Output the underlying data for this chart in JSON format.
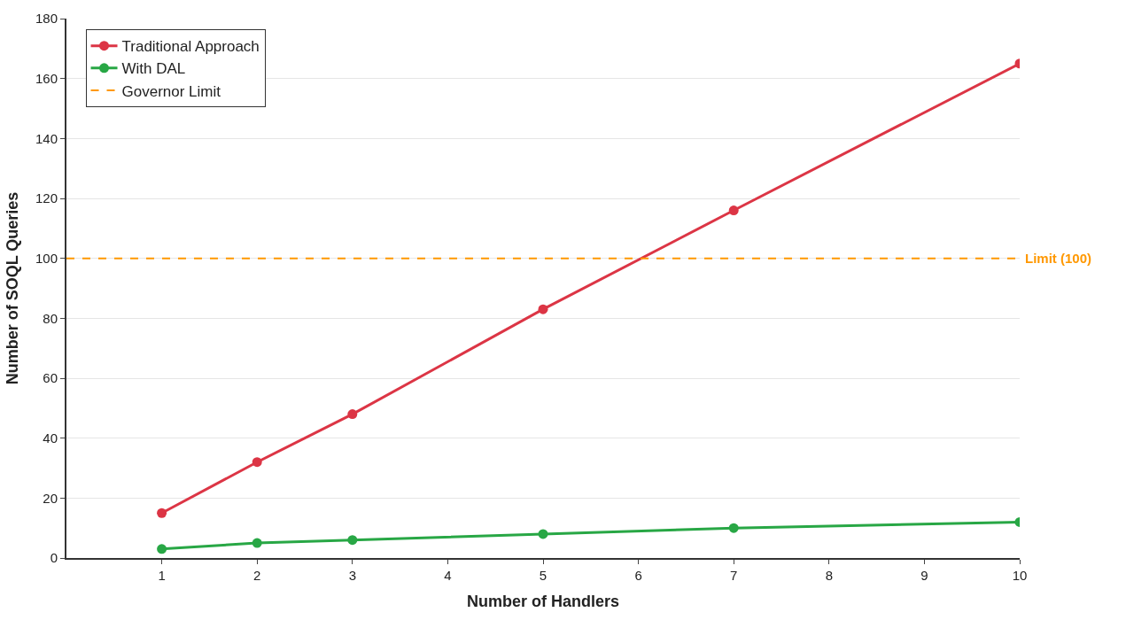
{
  "chart_data": {
    "type": "line",
    "xlabel": "Number of Handlers",
    "ylabel": "Number of SOQL Queries",
    "x": [
      1,
      2,
      3,
      5,
      7,
      10
    ],
    "series": [
      {
        "name": "Traditional Approach",
        "color": "#dc3545",
        "values": [
          15,
          32,
          48,
          83,
          116,
          165
        ]
      },
      {
        "name": "With DAL",
        "color": "#28a745",
        "values": [
          3,
          5,
          6,
          8,
          10,
          12
        ]
      },
      {
        "name": "Governor Limit",
        "color": "#ff9800",
        "x": [
          0,
          10
        ],
        "values": [
          100,
          100
        ],
        "line_style": "dashed",
        "marker": "none"
      }
    ],
    "annotations": [
      {
        "text": "Limit (100)",
        "x": 10,
        "y": 100
      }
    ],
    "xlim": [
      0,
      10
    ],
    "xticks": [
      1,
      2,
      3,
      4,
      5,
      6,
      7,
      8,
      9,
      10
    ],
    "ylim": [
      0,
      180
    ],
    "yticks": [
      0,
      20,
      40,
      60,
      80,
      100,
      120,
      140,
      160,
      180
    ],
    "grid": "y",
    "legend": "top left",
    "marker": "circle",
    "line_style": "solid"
  }
}
